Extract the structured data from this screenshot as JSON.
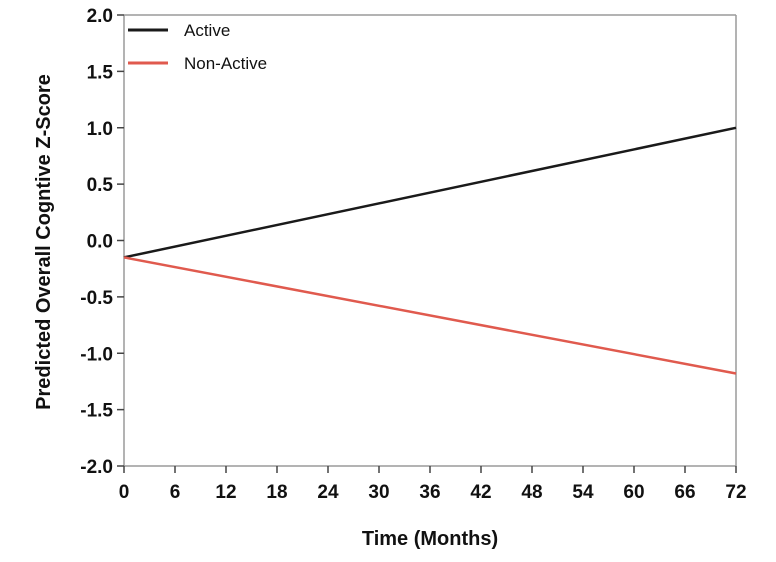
{
  "chart_data": {
    "type": "line",
    "title": "",
    "xlabel": "Time (Months)",
    "ylabel": "Predicted Overall Cogntive Z-Score",
    "x": [
      0,
      72
    ],
    "xticks": [
      "0",
      "6",
      "12",
      "18",
      "24",
      "30",
      "36",
      "42",
      "48",
      "54",
      "60",
      "66",
      "72"
    ],
    "xlim": [
      0,
      72
    ],
    "yticks": [
      "2.0",
      "1.5",
      "1.0",
      "0.5",
      "0.0",
      "-0.5",
      "-1.0",
      "-1.5",
      "-2.0"
    ],
    "ylim": [
      -2.0,
      2.0
    ],
    "grid": false,
    "legend_position": "top-left",
    "series": [
      {
        "name": "Active",
        "color": "#1a1a1a",
        "values": [
          -0.15,
          1.0
        ]
      },
      {
        "name": "Non-Active",
        "color": "#e05a4e",
        "values": [
          -0.15,
          -1.18
        ]
      }
    ]
  }
}
